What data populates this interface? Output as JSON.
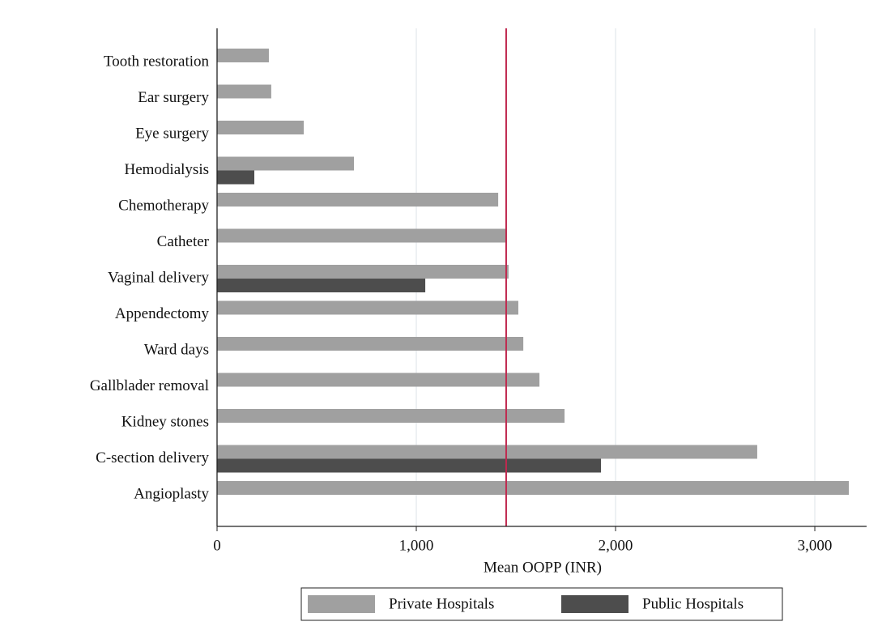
{
  "chart_data": {
    "type": "bar",
    "orientation": "horizontal",
    "categories": [
      "Tooth restoration",
      "Ear surgery",
      "Eye surgery",
      "Hemodialysis",
      "Chemotherapy",
      "Catheter",
      "Vaginal delivery",
      "Appendectomy",
      "Ward days",
      "Gallblader removal",
      "Kidney stones",
      "C-section delivery",
      "Angioplasty"
    ],
    "series": [
      {
        "name": "Private Hospitals",
        "color": "#a0a0a0",
        "values": [
          260,
          272,
          435,
          687,
          1411,
          1455,
          1463,
          1512,
          1537,
          1618,
          1744,
          2711,
          3171
        ]
      },
      {
        "name": "Public Hospitals",
        "color": "#4d4d4d",
        "values": [
          null,
          null,
          null,
          187,
          null,
          null,
          1045,
          null,
          null,
          null,
          null,
          1927,
          null
        ]
      }
    ],
    "reference_line": {
      "value": 1451,
      "color": "#c0294f"
    },
    "xlabel": "Mean OOPP (INR)",
    "xlim": [
      0,
      3260
    ],
    "xticks": [
      0,
      {
        "value": 1000,
        "label": "1,000"
      },
      {
        "value": 2000,
        "label": "2,000"
      },
      {
        "value": 3000,
        "label": "3,000"
      }
    ],
    "grid": true,
    "legend": "bottom"
  }
}
